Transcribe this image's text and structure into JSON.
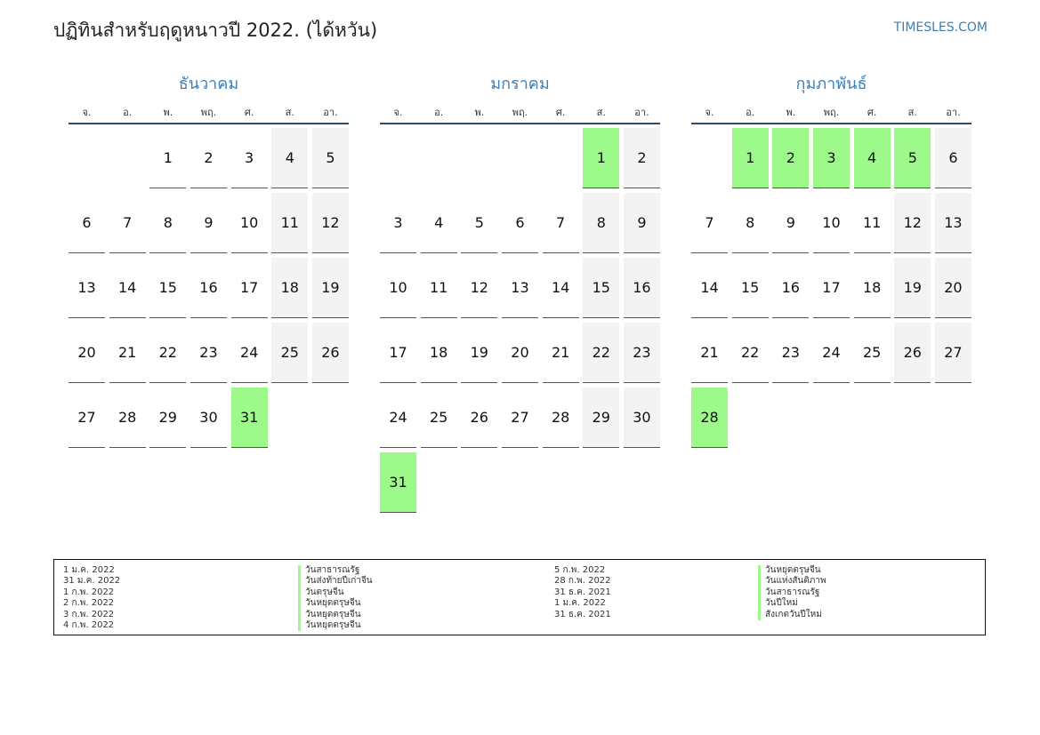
{
  "header": {
    "title": "ปฏิทินสำหรับฤดูหนาวปี 2022. (ได้หวัน)",
    "brand": "TIMESLES.COM"
  },
  "weekdays": [
    "จ.",
    "อ.",
    "พ.",
    "พฤ.",
    "ศ.",
    "ส.",
    "อา."
  ],
  "colors": {
    "accent": "#3a7fb8",
    "holiday": "#9cf98a",
    "weekend": "#f3f3f3",
    "rule": "#2d4a6b"
  },
  "months": [
    {
      "name": "ธันวาคม",
      "offset": 2,
      "days": 31,
      "holidays": [
        31
      ]
    },
    {
      "name": "มกราคม",
      "offset": 5,
      "days": 31,
      "holidays": [
        1,
        31
      ]
    },
    {
      "name": "กุมภาพันธ์",
      "offset": 1,
      "days": 28,
      "holidays": [
        1,
        2,
        3,
        4,
        5,
        28
      ]
    }
  ],
  "legend": [
    [
      {
        "date": "1 ม.ค. 2022",
        "name": "วันสาธารณรัฐ"
      },
      {
        "date": "31 ม.ค. 2022",
        "name": "วันส่งท้ายปีเก่าจีน"
      },
      {
        "date": "1 ก.พ. 2022",
        "name": "วันตรุษจีน"
      },
      {
        "date": "2 ก.พ. 2022",
        "name": "วันหยุดตรุษจีน"
      },
      {
        "date": "3 ก.พ. 2022",
        "name": "วันหยุดตรุษจีน"
      },
      {
        "date": "4 ก.พ. 2022",
        "name": "วันหยุดตรุษจีน"
      }
    ],
    [
      {
        "date": "5 ก.พ. 2022",
        "name": "วันหยุดตรุษจีน"
      },
      {
        "date": "28 ก.พ. 2022",
        "name": "วันแห่งสันติภาพ"
      },
      {
        "date": "31 ธ.ค. 2021",
        "name": "วันสาธารณรัฐ"
      },
      {
        "date": "1 ม.ค. 2022",
        "name": "วันปีใหม่"
      },
      {
        "date": "31 ธ.ค. 2021",
        "name": "สังเกตวันปีใหม่"
      }
    ]
  ]
}
